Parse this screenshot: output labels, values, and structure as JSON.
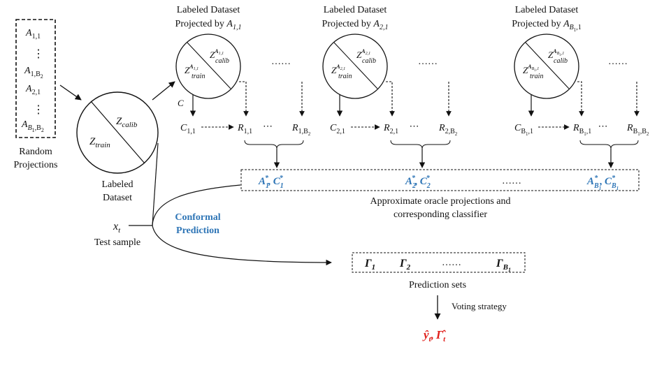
{
  "random_projections": {
    "items": [
      {
        "base": "A",
        "sub": "1,1"
      },
      {
        "base": "⋮",
        "sub": ""
      },
      {
        "base": "A",
        "sub": "1,B",
        "sub2": "2"
      },
      {
        "base": "A",
        "sub": "2,1"
      },
      {
        "base": "⋮",
        "sub": ""
      },
      {
        "base": "A",
        "sub": "B",
        "sub_b": "1",
        "sub_rest": ",B",
        "sub2": "2"
      }
    ],
    "label_line1": "Random",
    "label_line2": "Projections"
  },
  "labeled_dataset": {
    "label_line1": "Labeled",
    "label_line2": "Dataset",
    "calib": {
      "base": "Z",
      "sub": "calib"
    },
    "train": {
      "base": "Z",
      "sub": "train"
    }
  },
  "projected": [
    {
      "line1": "Labeled Dataset",
      "line2": "Projected by",
      "proj": "A",
      "proj_sub": "1,1"
    },
    {
      "line1": "Labeled Dataset",
      "line2": "Projected by",
      "proj": "A",
      "proj_sub": "2,1"
    },
    {
      "line1": "Labeled Dataset",
      "line2": "Projected by",
      "proj": "A",
      "proj_sub": "B",
      "proj_sub_b": "1",
      "proj_sub_rest": ",1"
    }
  ],
  "projected_circle": {
    "calib_sub": "calib",
    "train_sub": "train",
    "sup": [
      "A",
      "A",
      "A"
    ],
    "sup_sub": [
      "1,1",
      "2,1",
      "B"
    ],
    "sup_sub_b": [
      "",
      "",
      "1"
    ],
    "sup_sub_rest": [
      "",
      "",
      ",1"
    ]
  },
  "classifier_arrow_label": "C",
  "rows": [
    {
      "c": "C",
      "c_sub": "1,1",
      "r1": "R",
      "r1_sub": "1,1",
      "r2": "R",
      "r2_sub": "1,B",
      "r2_sub2": "2"
    },
    {
      "c": "C",
      "c_sub": "2,1",
      "r1": "R",
      "r1_sub": "2,1",
      "r2": "R",
      "r2_sub": "2,B",
      "r2_sub2": "2"
    },
    {
      "c": "C",
      "c_sub": "B",
      "c_sub_b": "1",
      "c_sub_rest": ",1",
      "r1": "R",
      "r1_sub": "B",
      "r1_sub_b": "1",
      "r1_sub_rest": ",1",
      "r2": "R",
      "r2_sub": "B",
      "r2_sub_b": "1",
      "r2_sub_rest": ",B",
      "r2_sub2": "2"
    }
  ],
  "dots": {
    "hdots": "……",
    "mid": "⋯"
  },
  "oracle": {
    "items": [
      {
        "a": "A",
        "a_sub": "1",
        "c": "C",
        "c_sub": "1"
      },
      {
        "a": "A",
        "a_sub": "2",
        "c": "C",
        "c_sub": "2"
      },
      {
        "a": "A",
        "a_sub": "B",
        "a_sub_b": "1",
        "c": "C",
        "c_sub": "B",
        "c_sub_b": "1"
      }
    ],
    "star": "*",
    "comma": ",",
    "caption_line1": "Approximate  oracle projections and",
    "caption_line2": "corresponding classifier"
  },
  "conformal_line1": "Conformal",
  "conformal_line2": "Prediction",
  "test_sample": {
    "var": "x",
    "sub": "t",
    "label": "Test sample"
  },
  "prediction_sets": {
    "items": [
      {
        "base": "Γ",
        "sub": "1"
      },
      {
        "base": "Γ",
        "sub": "2"
      },
      {
        "base": "Γ",
        "sub": "B",
        "sub_b": "1"
      }
    ],
    "label": "Prediction sets"
  },
  "voting_label": "Voting strategy",
  "output": {
    "y": "ŷ",
    "y_sub": "t",
    "comma": ",",
    "g": "Γ̂",
    "g_sub": "t"
  },
  "colors": {
    "accent_blue": "#2e75b6",
    "output_red": "#e0201b"
  }
}
